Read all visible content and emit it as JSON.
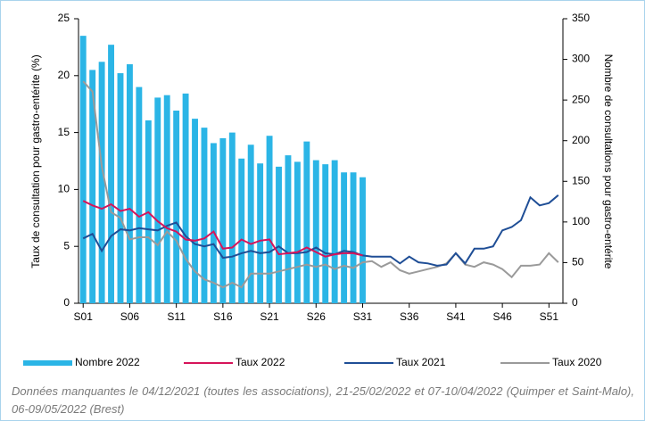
{
  "chart_data": {
    "type": "bar-line",
    "ylabel": "Taux de consultation pour gastro-entérite (%)",
    "y2label": "Nombre de consultations pour gastro-entérite",
    "note": "Données manquantes le 04/12/2021 (toutes les associations), 21-25/02/2022 et 07-10/04/2022 (Quimper et Saint-Malo), 06-09/05/2022 (Brest)",
    "categories": [
      "S01",
      null,
      null,
      null,
      null,
      "S06",
      null,
      null,
      null,
      null,
      "S11",
      null,
      null,
      null,
      null,
      "S16",
      null,
      null,
      null,
      null,
      "S21",
      null,
      null,
      null,
      null,
      "S26",
      null,
      null,
      null,
      null,
      "S31",
      null,
      null,
      null,
      null,
      "S36",
      null,
      null,
      null,
      null,
      "S41",
      null,
      null,
      null,
      null,
      "S46",
      null,
      null,
      null,
      null,
      "S51",
      null
    ],
    "ylim": [
      0,
      25
    ],
    "yticks": [
      0,
      5,
      10,
      15,
      20,
      25
    ],
    "y2lim": [
      0,
      350
    ],
    "y2ticks": [
      0,
      50,
      100,
      150,
      200,
      250,
      300,
      350
    ],
    "series": [
      {
        "name": "Nombre 2022",
        "type": "bar",
        "axis": "y2",
        "color": "#2bb5e6",
        "values": [
          329,
          287,
          297,
          318,
          283,
          294,
          266,
          225,
          253,
          256,
          237,
          258,
          227,
          216,
          197,
          203,
          210,
          178,
          195,
          172,
          206,
          168,
          182,
          174,
          199,
          176,
          171,
          176,
          161,
          161,
          155,
          null,
          null,
          null,
          null,
          null,
          null,
          null,
          null,
          null,
          null,
          null,
          null,
          null,
          null,
          null,
          null,
          null,
          null,
          null,
          null,
          null
        ]
      },
      {
        "name": "Taux 2022",
        "type": "line",
        "color": "#d6145a",
        "values": [
          9.0,
          8.6,
          8.3,
          8.7,
          8.1,
          8.3,
          7.6,
          8.0,
          7.2,
          6.6,
          6.3,
          5.6,
          5.5,
          5.7,
          6.3,
          4.8,
          4.9,
          5.6,
          5.2,
          5.5,
          5.6,
          4.3,
          4.4,
          4.5,
          4.9,
          4.5,
          4.1,
          4.3,
          4.4,
          4.4,
          4.2,
          null,
          null,
          null,
          null,
          null,
          null,
          null,
          null,
          null,
          null,
          null,
          null,
          null,
          null,
          null,
          null,
          null,
          null,
          null,
          null,
          null
        ]
      },
      {
        "name": "Taux 2021",
        "type": "line",
        "color": "#1f4e96",
        "values": [
          5.7,
          6.1,
          4.6,
          5.9,
          6.5,
          6.4,
          6.6,
          6.5,
          6.4,
          6.8,
          7.1,
          5.9,
          5.2,
          5.0,
          5.2,
          4.0,
          4.1,
          4.4,
          4.6,
          4.4,
          4.5,
          5.0,
          4.4,
          4.4,
          4.5,
          4.9,
          4.4,
          4.3,
          4.6,
          4.5,
          4.2,
          4.1,
          4.1,
          4.1,
          3.5,
          4.1,
          3.6,
          3.5,
          3.3,
          3.4,
          4.4,
          3.5,
          4.8,
          4.8,
          5.0,
          6.4,
          6.7,
          7.3,
          9.3,
          8.6,
          8.8,
          9.5
        ]
      },
      {
        "name": "Taux 2020",
        "type": "line",
        "color": "#9a9a9a",
        "values": [
          19.5,
          18.6,
          12,
          8,
          7.5,
          5.6,
          5.8,
          5.8,
          5.1,
          6.3,
          5.5,
          3.9,
          2.8,
          2.1,
          1.8,
          1.4,
          1.8,
          1.4,
          2.6,
          2.6,
          2.6,
          2.8,
          3.0,
          3.2,
          3.4,
          3.2,
          3.4,
          3.0,
          3.3,
          3.1,
          3.6,
          3.7,
          3.2,
          3.6,
          2.9,
          2.6,
          2.8,
          3.0,
          3.2,
          3.5,
          4.4,
          3.4,
          3.2,
          3.6,
          3.4,
          3.0,
          2.3,
          3.3,
          3.3,
          3.4,
          4.4,
          3.6
        ]
      }
    ]
  }
}
